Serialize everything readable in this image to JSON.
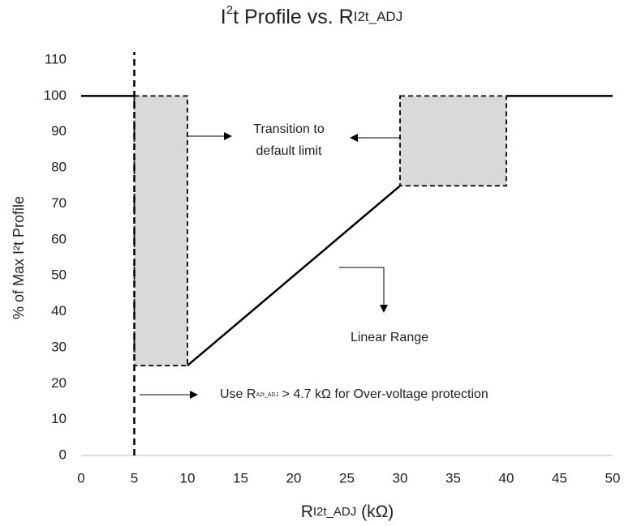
{
  "chart_data": {
    "type": "line",
    "title": [
      "I",
      "2",
      "t Profile vs. R",
      "I2t_ADJ"
    ],
    "x_label": [
      "R",
      "I2t_ADJ",
      " (kΩ)"
    ],
    "y_label": "% of Max I²t Profile",
    "xlim": [
      0,
      50
    ],
    "xticks": [
      0,
      5,
      10,
      15,
      20,
      25,
      30,
      35,
      40,
      45,
      50
    ],
    "ylim": [
      0,
      110
    ],
    "yticks": [
      0,
      10,
      20,
      30,
      40,
      50,
      60,
      70,
      80,
      90,
      100,
      110
    ],
    "grid": false,
    "color": "#000000",
    "series": [
      {
        "x": [
          0,
          5
        ],
        "values": [
          100,
          100
        ]
      },
      {
        "x": [
          10,
          30
        ],
        "values": [
          25,
          75
        ]
      },
      {
        "x": [
          40,
          50
        ],
        "values": [
          100,
          100
        ]
      }
    ],
    "regions": [
      {
        "x": [
          5,
          10
        ],
        "y": [
          25,
          100
        ],
        "color": "#d9d9d9"
      },
      {
        "x": [
          30,
          40
        ],
        "y": [
          75,
          100
        ],
        "color": "#d9d9d9"
      }
    ],
    "vline": 5,
    "annotations": [
      "Transition to",
      "default limit",
      "Linear Range"
    ],
    "note": [
      "Use R",
      "A2t_ADJ",
      " > 4.7 kΩ for Over-voltage protection"
    ]
  }
}
